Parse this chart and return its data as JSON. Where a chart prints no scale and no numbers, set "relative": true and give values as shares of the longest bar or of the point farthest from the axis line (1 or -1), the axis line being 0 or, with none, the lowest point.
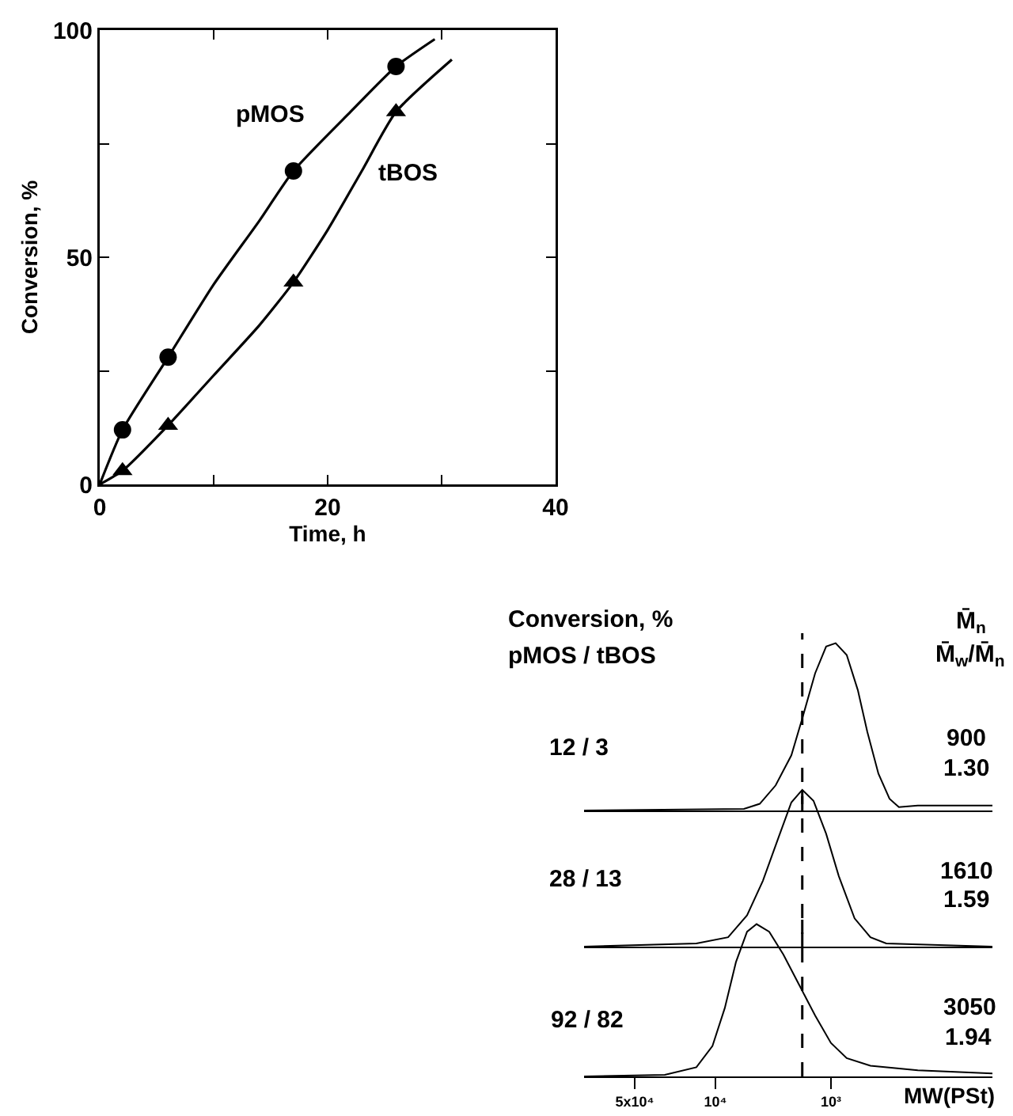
{
  "chart_data": [
    {
      "type": "scatter",
      "xlabel": "Time, h",
      "ylabel": "Conversion, %",
      "xlim": [
        0,
        40
      ],
      "ylim": [
        0,
        100
      ],
      "xticks": [
        0,
        {
          "value": 10,
          "label": null
        },
        20,
        {
          "value": 30,
          "label": null
        },
        40
      ],
      "yticks": [
        0,
        {
          "value": 25,
          "label": null
        },
        50,
        {
          "value": 75,
          "label": null
        },
        100
      ],
      "grid": false,
      "series": [
        {
          "color": "#000000",
          "marker": "circle",
          "x": [
            2,
            6,
            17,
            26
          ],
          "values": [
            12,
            28,
            69,
            92
          ]
        },
        {
          "color": "#000000",
          "marker": "triangle",
          "x": [
            2,
            6,
            17,
            26
          ],
          "values": [
            3,
            13,
            44.5,
            82
          ]
        },
        {
          "type": "line",
          "color": "#000000",
          "marker": "none",
          "x": [
            0,
            2,
            6,
            10,
            14,
            17,
            22,
            26,
            29.4
          ],
          "values": [
            0,
            12,
            28,
            44,
            58,
            69,
            82,
            92,
            98
          ]
        },
        {
          "type": "line",
          "color": "#000000",
          "marker": "none",
          "x": [
            0,
            2,
            6,
            10,
            14,
            17,
            20,
            23,
            26,
            30.9
          ],
          "values": [
            0,
            3,
            13,
            24,
            35,
            44.5,
            56,
            69,
            82,
            93.5
          ]
        }
      ],
      "annotations": [
        "pMOS",
        "tBOS"
      ]
    },
    {
      "type": "line",
      "relative": true,
      "log": "x",
      "xlim": [
        137000,
        40
      ],
      "tick_labels": false,
      "grid": false,
      "series": [
        {
          "color": "#000000",
          "marker": "none",
          "x": [
            137000,
            5660,
            4130,
            3010,
            2200,
            1770,
            1370,
            1100,
            910,
            730,
            585,
            484,
            388,
            311,
            258,
            177,
            40
          ],
          "values": [
            0,
            0.01,
            0.04,
            0.15,
            0.33,
            0.55,
            0.82,
            0.98,
            1,
            0.93,
            0.72,
            0.47,
            0.22,
            0.07,
            0.02,
            0.03,
            0.03
          ]
        }
      ],
      "ref_lines": [
        {
          "axis": "x",
          "value": 1770,
          "line_style": "dashed"
        }
      ],
      "annotations": [
        "Conversion, %",
        "pMOS / tBOS",
        "M̄$_{n}$",
        "M̄$_{w}$/M̄$_{n}$",
        "12 / 3",
        "900",
        "1.30"
      ]
    },
    {
      "type": "line",
      "relative": true,
      "log": "x",
      "xlim": [
        137000,
        40
      ],
      "tick_labels": false,
      "grid": false,
      "series": [
        {
          "color": "#000000",
          "marker": "none",
          "x": [
            137000,
            14600,
            7760,
            5320,
            3880,
            2830,
            2200,
            1770,
            1415,
            1100,
            855,
            624,
            455,
            332,
            40
          ],
          "values": [
            0,
            0.02,
            0.06,
            0.2,
            0.42,
            0.7,
            0.92,
            1,
            0.93,
            0.72,
            0.45,
            0.18,
            0.06,
            0.02,
            0
          ]
        }
      ],
      "ref_lines": [
        {
          "axis": "x",
          "value": 1770,
          "line_style": "dashed"
        }
      ],
      "annotations": [
        "28 / 13",
        "1610",
        "1.59"
      ]
    },
    {
      "type": "line",
      "relative": true,
      "log": "x",
      "xlim": [
        137000,
        40
      ],
      "tick_labels": "x",
      "grid": false,
      "xlabel": "MW(PSt)",
      "xticks": [
        {
          "value": 50000,
          "label": "5x10⁴"
        },
        {
          "value": 10000,
          "label": "10⁴"
        },
        {
          "value": 1000,
          "label": "10³"
        }
      ],
      "series": [
        {
          "color": "#000000",
          "marker": "none",
          "x": [
            137000,
            27400,
            14600,
            10600,
            8280,
            6640,
            5320,
            4400,
            3420,
            2580,
            1880,
            1370,
            1000,
            730,
            455,
            177,
            40
          ],
          "values": [
            0,
            0.01,
            0.06,
            0.2,
            0.45,
            0.75,
            0.95,
            1,
            0.95,
            0.8,
            0.6,
            0.4,
            0.22,
            0.12,
            0.07,
            0.04,
            0.02
          ]
        }
      ],
      "ref_lines": [
        {
          "axis": "x",
          "value": 1770,
          "line_style": "dashed"
        }
      ],
      "annotations": [
        "92 / 82",
        "3050",
        "1.94"
      ]
    }
  ]
}
